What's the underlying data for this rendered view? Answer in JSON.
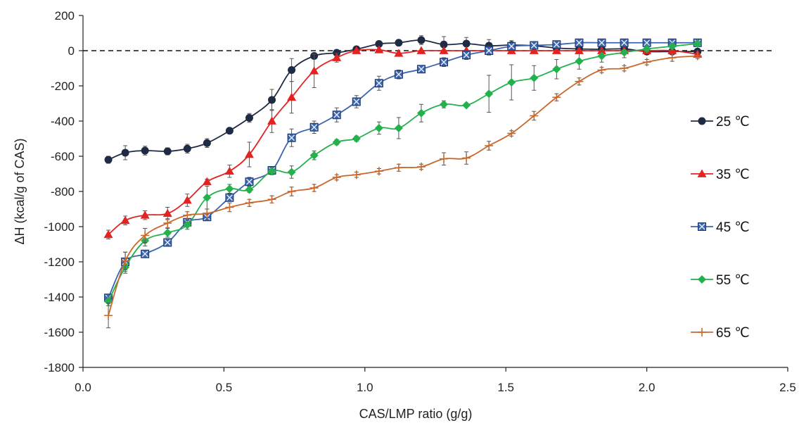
{
  "chart_data": {
    "type": "line",
    "title": "",
    "xlabel": "CAS/LMP ratio (g/g)",
    "ylabel": "ΔH (kcal/g of CAS)",
    "xlim": [
      0.0,
      2.5
    ],
    "ylim": [
      -1800,
      200
    ],
    "xticks": [
      "0.0",
      "0.5",
      "1.0",
      "1.5",
      "2.0",
      "2.5"
    ],
    "yticks": [
      "200",
      "0",
      "-200",
      "-400",
      "-600",
      "-800",
      "-1000",
      "-1200",
      "-1400",
      "-1600",
      "-1800"
    ],
    "reference_line": {
      "y": 0,
      "style": "dashed"
    },
    "grid": false,
    "legend_position": "right",
    "series": [
      {
        "name": "25 ℃",
        "color": "#1f2a44",
        "marker": "circle",
        "x": [
          0.09,
          0.15,
          0.22,
          0.3,
          0.37,
          0.44,
          0.52,
          0.59,
          0.67,
          0.74,
          0.82,
          0.9,
          0.97,
          1.05,
          1.12,
          1.2,
          1.28,
          1.36,
          1.44,
          1.52,
          1.6,
          1.68,
          1.76,
          1.84,
          1.92,
          2.0,
          2.09,
          2.18
        ],
        "y": [
          -620,
          -580,
          -568,
          -572,
          -557,
          -525,
          -455,
          -382,
          -280,
          -110,
          -30,
          -12,
          8,
          38,
          45,
          60,
          35,
          40,
          28,
          32,
          28,
          15,
          10,
          8,
          10,
          -5,
          -5,
          -5
        ],
        "err": [
          20,
          40,
          25,
          20,
          25,
          25,
          0,
          25,
          60,
          65,
          0,
          0,
          0,
          0,
          0,
          25,
          45,
          35,
          35,
          25,
          20,
          0,
          0,
          0,
          0,
          0,
          0,
          0
        ]
      },
      {
        "name": "35 ℃",
        "color": "#e32222",
        "marker": "triangle",
        "x": [
          0.09,
          0.15,
          0.22,
          0.3,
          0.37,
          0.44,
          0.52,
          0.59,
          0.67,
          0.74,
          0.82,
          0.9,
          0.97,
          1.05,
          1.12,
          1.2,
          1.28,
          1.36,
          1.44,
          1.52,
          1.6,
          1.68,
          1.76,
          1.84,
          1.92,
          2.0,
          2.09,
          2.18
        ],
        "y": [
          -1045,
          -965,
          -935,
          -925,
          -850,
          -745,
          -685,
          -590,
          -400,
          -265,
          -115,
          -40,
          0,
          5,
          -15,
          0,
          0,
          0,
          0,
          0,
          0,
          0,
          0,
          0,
          0,
          0,
          0,
          -20
        ],
        "err": [
          25,
          25,
          25,
          35,
          35,
          15,
          35,
          70,
          65,
          90,
          95,
          25,
          0,
          0,
          0,
          0,
          0,
          0,
          0,
          0,
          0,
          0,
          0,
          0,
          0,
          0,
          0,
          0
        ]
      },
      {
        "name": "45 ℃",
        "color": "#3b64ad",
        "marker": "x-square",
        "x": [
          0.09,
          0.15,
          0.22,
          0.3,
          0.37,
          0.44,
          0.52,
          0.59,
          0.67,
          0.74,
          0.82,
          0.9,
          0.97,
          1.05,
          1.12,
          1.2,
          1.28,
          1.36,
          1.44,
          1.52,
          1.6,
          1.68,
          1.76,
          1.84,
          1.92,
          2.0,
          2.09,
          2.18
        ],
        "y": [
          -1405,
          -1200,
          -1155,
          -1090,
          -975,
          -945,
          -835,
          -745,
          -680,
          -495,
          -435,
          -365,
          -290,
          -185,
          -135,
          -105,
          -65,
          -25,
          0,
          25,
          30,
          35,
          45,
          45,
          45,
          45,
          45,
          45
        ],
        "err": [
          20,
          55,
          15,
          20,
          20,
          20,
          20,
          25,
          20,
          50,
          35,
          40,
          35,
          40,
          25,
          20,
          25,
          25,
          25,
          15,
          10,
          0,
          0,
          0,
          0,
          0,
          0,
          0
        ]
      },
      {
        "name": "55 ℃",
        "color": "#22b14c",
        "marker": "diamond",
        "x": [
          0.09,
          0.15,
          0.22,
          0.3,
          0.37,
          0.44,
          0.52,
          0.59,
          0.67,
          0.74,
          0.82,
          0.9,
          0.97,
          1.05,
          1.12,
          1.2,
          1.28,
          1.36,
          1.44,
          1.52,
          1.6,
          1.68,
          1.76,
          1.84,
          1.92,
          2.0,
          2.09,
          2.18
        ],
        "y": [
          -1425,
          -1230,
          -1080,
          -1035,
          -990,
          -835,
          -785,
          -790,
          -685,
          -690,
          -595,
          -520,
          -500,
          -440,
          -440,
          -355,
          -305,
          -310,
          -245,
          -180,
          -155,
          -105,
          -60,
          -30,
          -10,
          10,
          25,
          40
        ],
        "err": [
          25,
          35,
          30,
          25,
          25,
          65,
          25,
          15,
          20,
          35,
          25,
          15,
          15,
          35,
          60,
          50,
          20,
          0,
          105,
          100,
          70,
          55,
          45,
          35,
          30,
          0,
          0,
          0
        ]
      },
      {
        "name": "65 ℃",
        "color": "#c8682c",
        "marker": "plus",
        "x": [
          0.09,
          0.15,
          0.22,
          0.3,
          0.37,
          0.44,
          0.52,
          0.59,
          0.67,
          0.74,
          0.82,
          0.9,
          0.97,
          1.05,
          1.12,
          1.2,
          1.28,
          1.36,
          1.44,
          1.52,
          1.6,
          1.68,
          1.76,
          1.84,
          1.92,
          2.0,
          2.09,
          2.18
        ],
        "y": [
          -1505,
          -1195,
          -1050,
          -980,
          -935,
          -925,
          -890,
          -865,
          -845,
          -800,
          -780,
          -720,
          -705,
          -685,
          -665,
          -660,
          -615,
          -610,
          -540,
          -470,
          -370,
          -265,
          -175,
          -110,
          -100,
          -65,
          -40,
          -30
        ],
        "err": [
          70,
          50,
          40,
          25,
          20,
          25,
          25,
          20,
          20,
          25,
          20,
          15,
          15,
          15,
          20,
          15,
          35,
          35,
          25,
          15,
          25,
          20,
          20,
          15,
          15,
          15,
          20,
          15
        ]
      }
    ]
  }
}
